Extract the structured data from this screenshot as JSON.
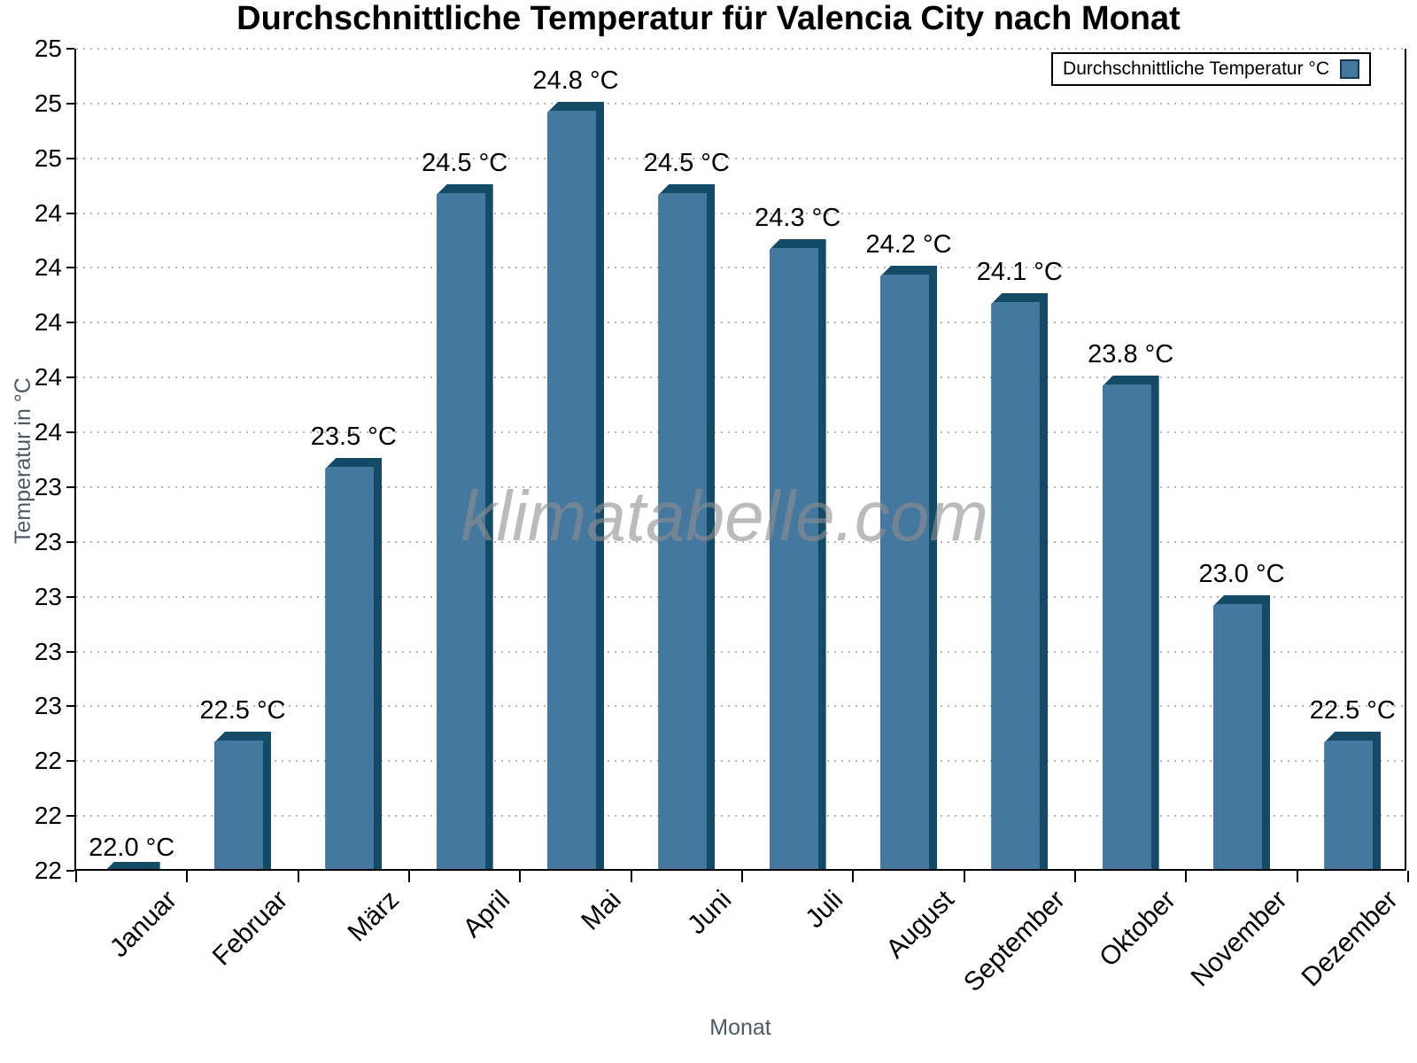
{
  "title": "Durchschnittliche Temperatur für Valencia City nach Monat",
  "watermark": "klimatabelle.com",
  "legend": {
    "label": "Durchschnittliche Temperatur °C"
  },
  "colors": {
    "bar_face": "#44789E",
    "bar_edge": "#134A66",
    "grid": "#B3B3B3",
    "axis": "#000000",
    "axis_title_text": "#4D5A66",
    "watermark_text": "#8F8F8F"
  },
  "chart_data": {
    "type": "bar",
    "title": "Durchschnittliche Temperatur für Valencia City nach Monat",
    "xlabel": "Monat",
    "ylabel": "Temperatur in °C",
    "unit": "°C",
    "categories": [
      "Januar",
      "Februar",
      "März",
      "April",
      "Mai",
      "Juni",
      "Juli",
      "August",
      "September",
      "Oktober",
      "November",
      "Dezember"
    ],
    "values": [
      22.0,
      22.5,
      23.5,
      24.5,
      24.8,
      24.5,
      24.3,
      24.2,
      24.1,
      23.8,
      23.0,
      22.5
    ],
    "value_labels": [
      "22.0 °C",
      "22.5 °C",
      "23.5 °C",
      "24.5 °C",
      "24.8 °C",
      "24.5 °C",
      "24.3 °C",
      "24.2 °C",
      "24.1 °C",
      "23.8 °C",
      "23.0 °C",
      "22.5 °C"
    ],
    "ylim": [
      22,
      25
    ],
    "ytick_step": 0.2,
    "y_ticks": [
      {
        "v": 22.0,
        "label": "22"
      },
      {
        "v": 22.2,
        "label": "22"
      },
      {
        "v": 22.4,
        "label": "22"
      },
      {
        "v": 22.6,
        "label": "23"
      },
      {
        "v": 22.8,
        "label": "23"
      },
      {
        "v": 23.0,
        "label": "23"
      },
      {
        "v": 23.2,
        "label": "23"
      },
      {
        "v": 23.4,
        "label": "23"
      },
      {
        "v": 23.6,
        "label": "24"
      },
      {
        "v": 23.8,
        "label": "24"
      },
      {
        "v": 24.0,
        "label": "24"
      },
      {
        "v": 24.2,
        "label": "24"
      },
      {
        "v": 24.4,
        "label": "24"
      },
      {
        "v": 24.6,
        "label": "25"
      },
      {
        "v": 24.8,
        "label": "25"
      },
      {
        "v": 25.0,
        "label": "25"
      }
    ],
    "grid": "horizontal-dotted",
    "legend_position": "top-right",
    "legend_label": "Durchschnittliche Temperatur °C"
  }
}
